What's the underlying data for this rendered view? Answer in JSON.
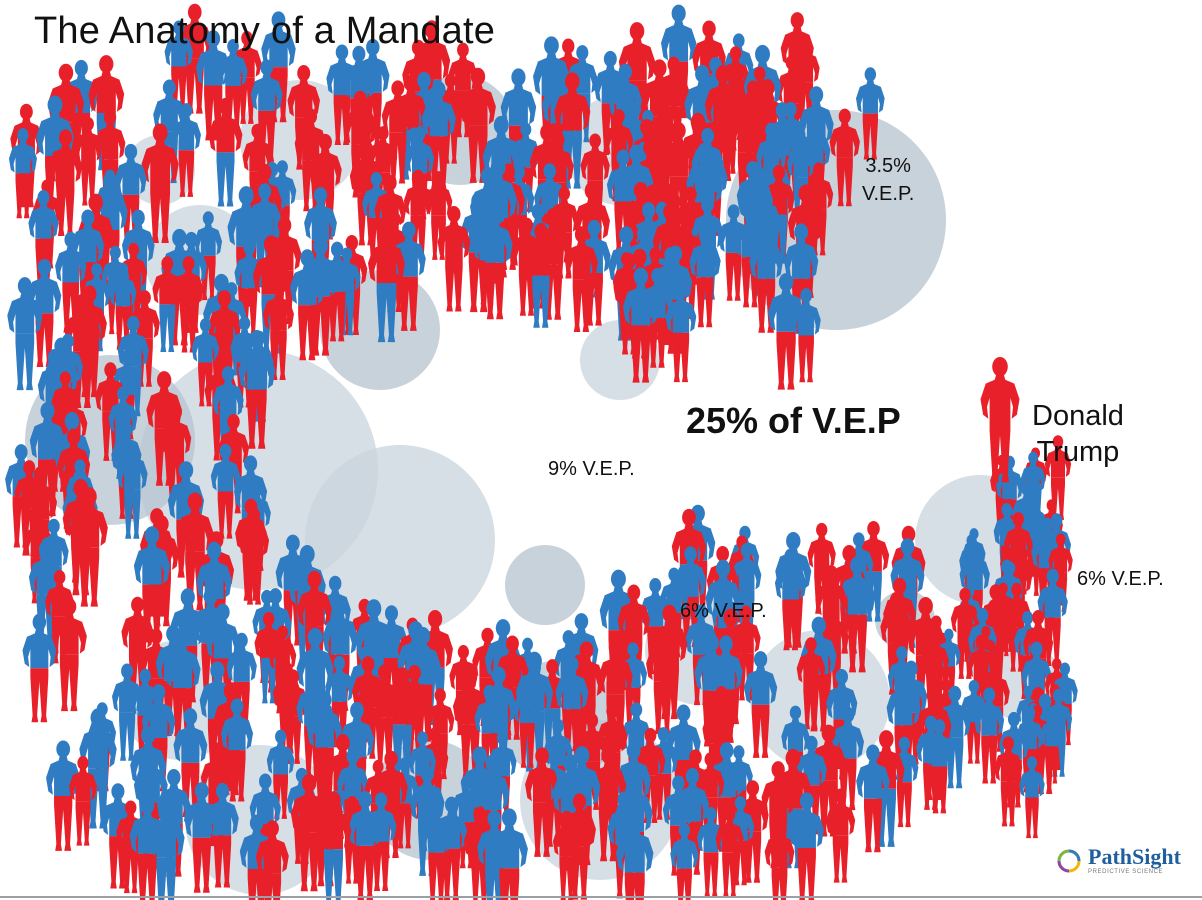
{
  "title": "The Anatomy of a Mandate",
  "center_label": "25% of V.E.P",
  "candidate_label": [
    "Donald",
    "Trump"
  ],
  "segment_labels": {
    "upper": [
      "3.5%",
      "V.E.P."
    ],
    "left": "9% V.E.P.",
    "bottom": "6% V.E.P.",
    "right": "6% V.E.P."
  },
  "logo": {
    "name": "PathSight",
    "tagline": "PREDICTIVE SCIENCE",
    "icon": "ring-logo-icon"
  },
  "colors": {
    "red": "#e8202a",
    "blue": "#2f7cc3",
    "bubble": "#c9d4de",
    "bubble_dark": "#b5c3cf"
  },
  "icons": {
    "person": "person-silhouette-icon"
  }
}
